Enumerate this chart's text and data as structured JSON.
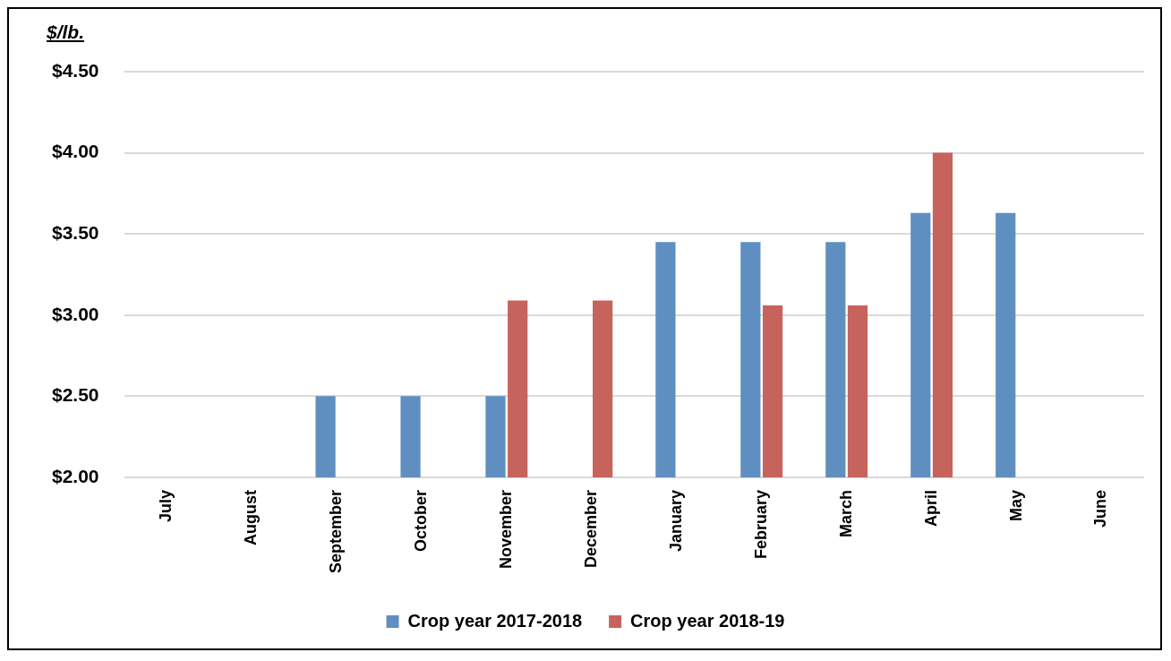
{
  "chart_data": {
    "type": "bar",
    "ylabel": "$/lb.",
    "categories": [
      "July",
      "August",
      "September",
      "October",
      "November",
      "December",
      "January",
      "February",
      "March",
      "April",
      "May",
      "June"
    ],
    "series": [
      {
        "name": "Crop year 2017-2018",
        "color": "#5f8fc0",
        "values": [
          null,
          null,
          2.5,
          2.5,
          2.5,
          null,
          3.45,
          3.45,
          3.45,
          3.63,
          3.63,
          null
        ]
      },
      {
        "name": "Crop year 2018-19",
        "color": "#c6635d",
        "values": [
          null,
          null,
          null,
          null,
          3.09,
          3.09,
          null,
          3.06,
          3.06,
          4.0,
          null,
          null
        ]
      }
    ],
    "ylim": [
      2,
      4.5
    ],
    "yticks": [
      {
        "value": 2,
        "label": "$2.00"
      },
      {
        "value": 2.5,
        "label": "$2.50"
      },
      {
        "value": 3,
        "label": "$3.00"
      },
      {
        "value": 3.5,
        "label": "$3.50"
      },
      {
        "value": 4,
        "label": "$4.00"
      },
      {
        "value": 4.5,
        "label": "$4.50"
      }
    ],
    "grid": "y",
    "legend": "bottom"
  }
}
